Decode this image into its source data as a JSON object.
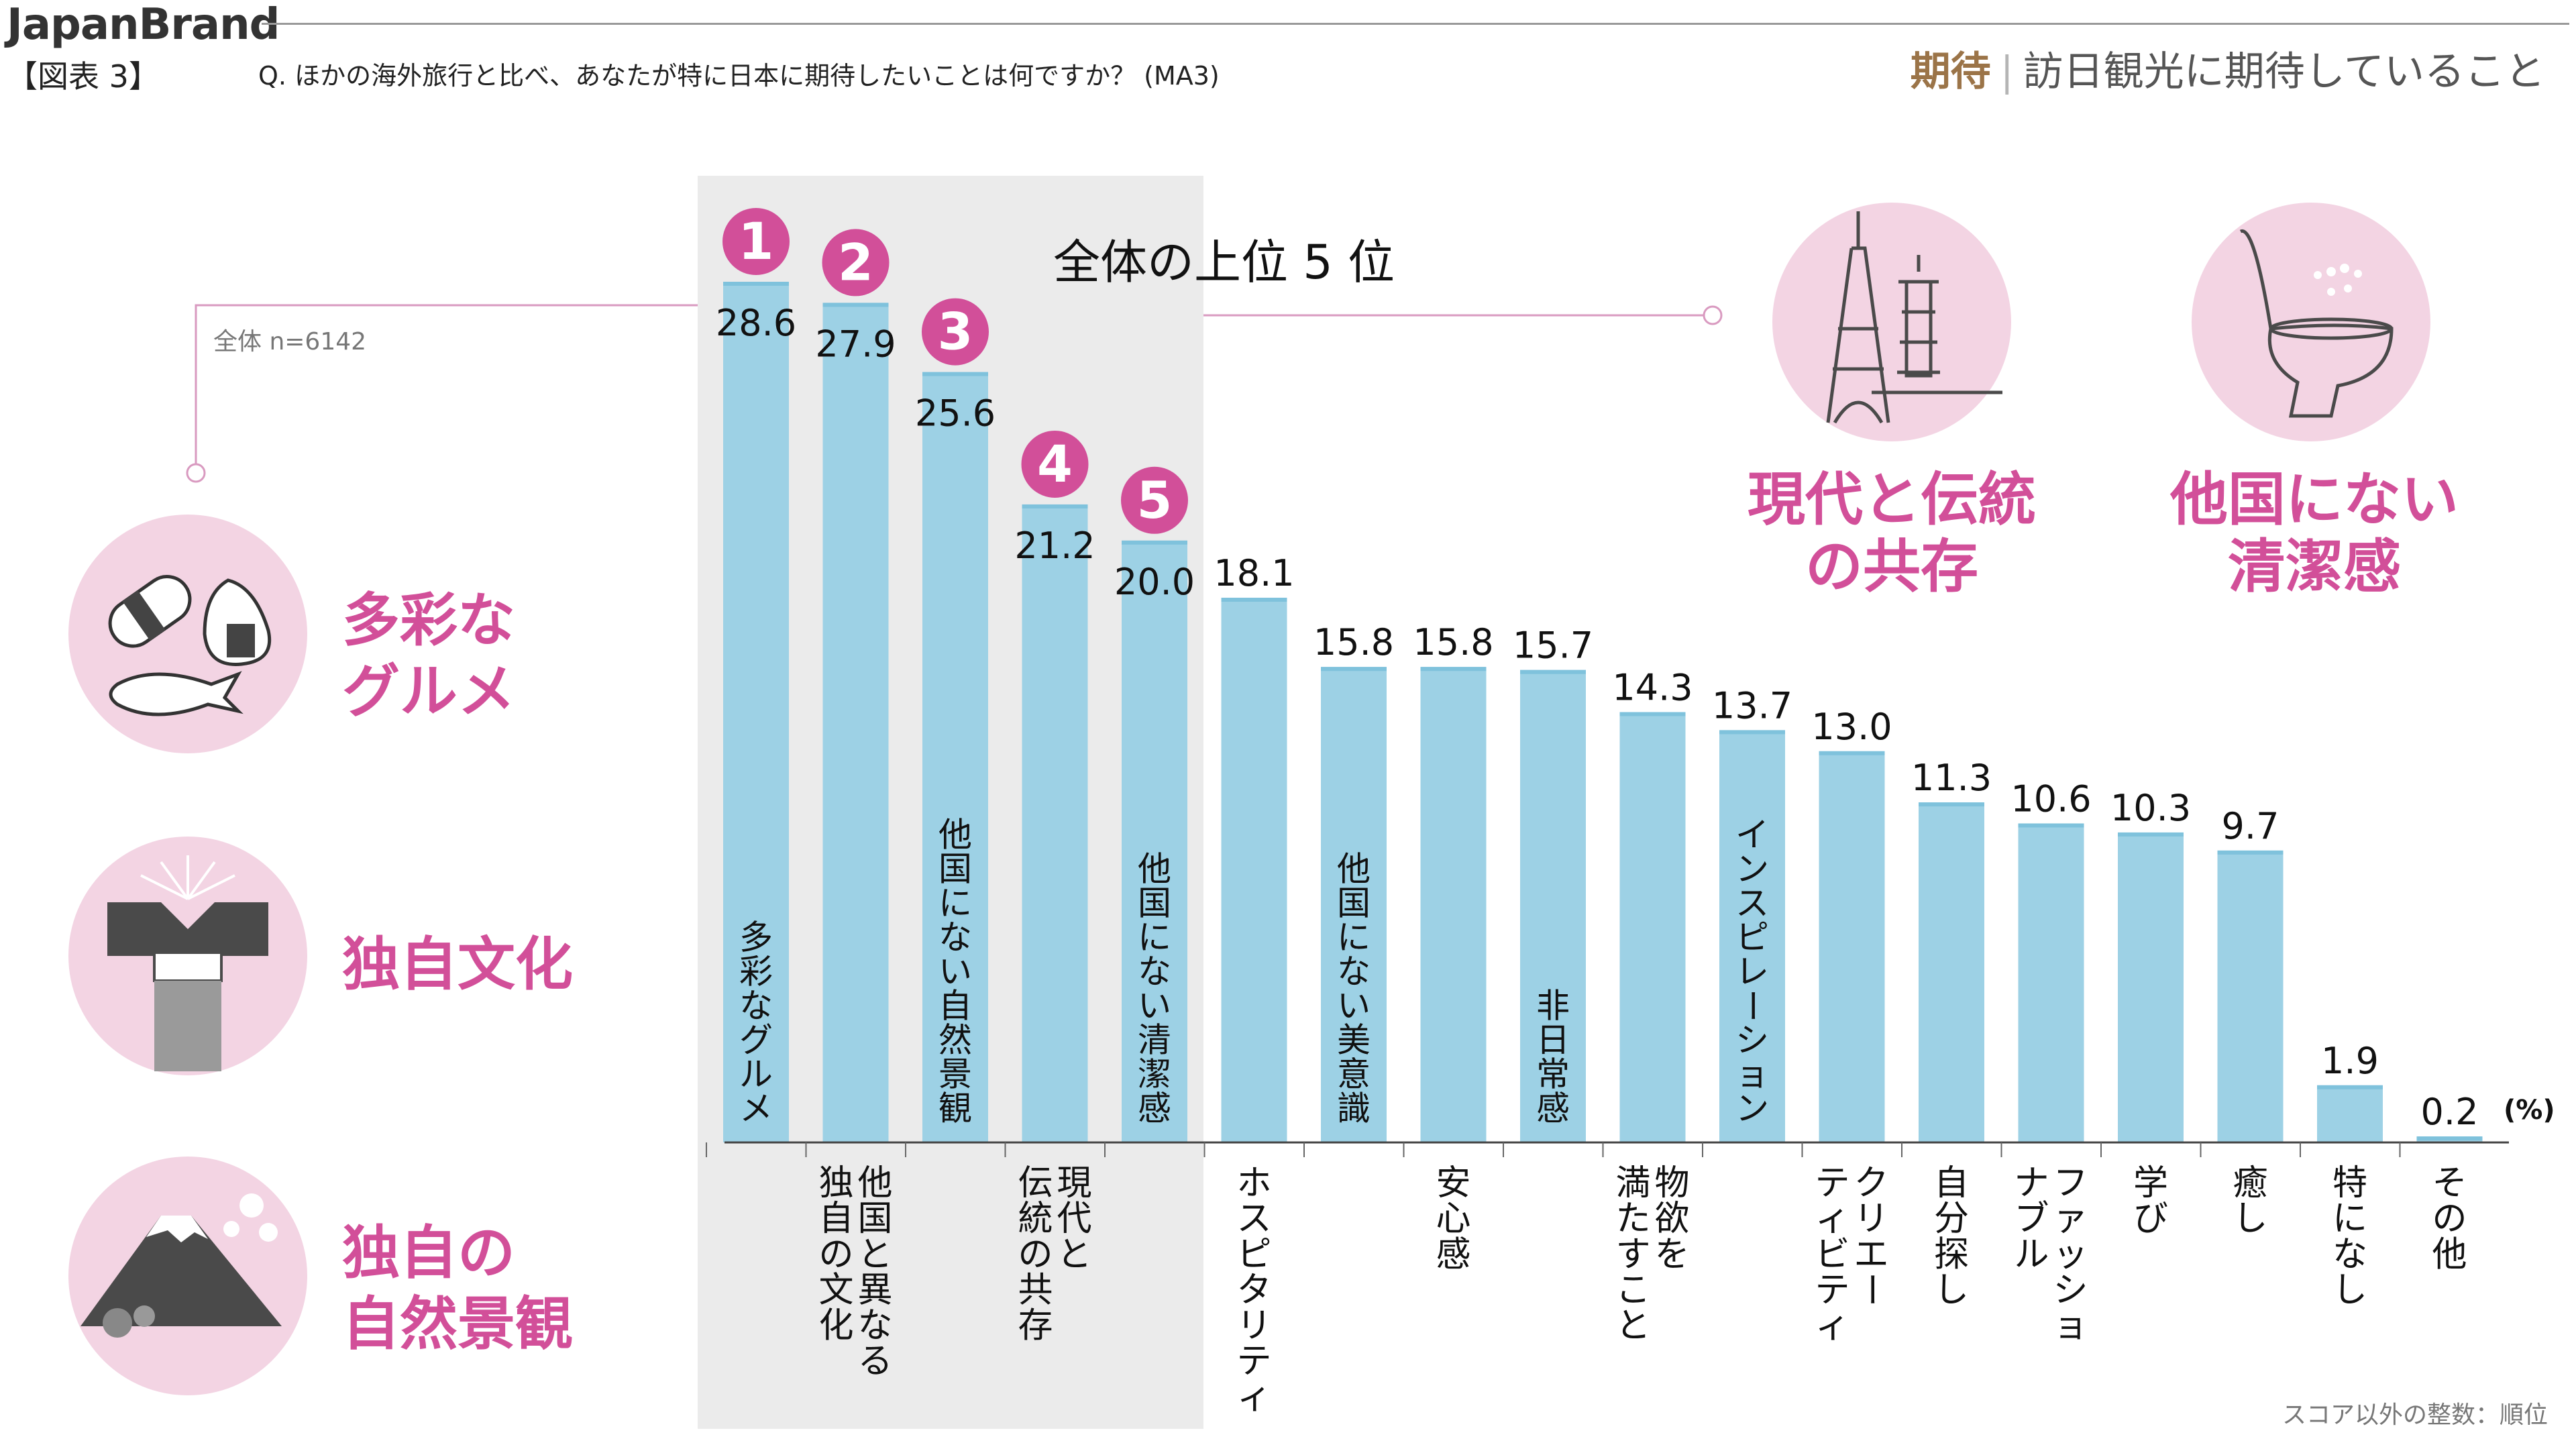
{
  "header": {
    "brand": "JapanBrand",
    "figure_label": "【図表 3】",
    "question": "Q. ほかの海外旅行と比べ、あなたが特に日本に期待したいことは何ですか？ (MA3)",
    "section_key": "期待",
    "section_title": "訪日観光に期待していること"
  },
  "sample_label": "全体 n=6142",
  "top5_title": "全体の上位 5 位",
  "unit_label": "(%)",
  "footnote": "スコア以外の整数：順位",
  "themes": {
    "gourmet": {
      "line1": "多彩な",
      "line2": "グルメ"
    },
    "culture": {
      "line1": "独自文化"
    },
    "landscape": {
      "line1": "独自の",
      "line2": "自然景観"
    },
    "coexist": {
      "line1": "現代と伝統",
      "line2": "の共存"
    },
    "clean": {
      "line1": "他国にない",
      "line2": "清潔感"
    }
  },
  "colors": {
    "bar": "#9dd1e5",
    "bar_top": "#7fc2dc",
    "accent_pink": "#d24f99",
    "icon_circle": "#f3d4e3",
    "highlight_bg": "#ebebeb"
  },
  "chart_data": {
    "type": "bar",
    "unit": "%",
    "ylim": [
      0,
      30
    ],
    "categories": [
      "多彩なグルメ",
      "他国と異なる独自の文化",
      "他国にない自然景観",
      "現代と伝統の共存",
      "他国にない清潔感",
      "ホスピタリティ",
      "他国にない美意識",
      "安心感",
      "非日常感",
      "物欲を満たすこと",
      "インスピレーション",
      "クリエーティビティ",
      "自分探し",
      "ファッショナブル",
      "学び",
      "癒し",
      "特になし",
      "その他"
    ],
    "values": [
      28.6,
      27.9,
      25.6,
      21.2,
      20.0,
      18.1,
      15.8,
      15.8,
      15.7,
      14.3,
      13.7,
      13.0,
      11.3,
      10.6,
      10.3,
      9.7,
      1.9,
      0.2
    ],
    "value_labels": [
      "28.6",
      "27.9",
      "25.6",
      "21.2",
      "20.0",
      "18.1",
      "15.8",
      "15.8",
      "15.7",
      "14.3",
      "13.7",
      "13.0",
      "11.3",
      "10.6",
      "10.3",
      "9.7",
      "1.9",
      "0.2"
    ],
    "ranks": [
      "1",
      "2",
      "3",
      "4",
      "5"
    ],
    "inside_labels": [
      {
        "index": 0,
        "text": "多彩なグルメ"
      },
      {
        "index": 2,
        "text": "他国にない自然景観"
      },
      {
        "index": 4,
        "text": "他国にない清潔感"
      },
      {
        "index": 6,
        "text": "他国にない美意識"
      },
      {
        "index": 8,
        "text": "非日常感"
      },
      {
        "index": 10,
        "text": "インスピレーション"
      }
    ],
    "below_labels": [
      {
        "index": 1,
        "lines": [
          "他国と異なる",
          "独自の文化"
        ]
      },
      {
        "index": 3,
        "lines": [
          "現代と",
          "伝統の共存"
        ]
      },
      {
        "index": 5,
        "lines": [
          "ホスピタリティ"
        ]
      },
      {
        "index": 7,
        "lines": [
          "安心感"
        ]
      },
      {
        "index": 9,
        "lines": [
          "物欲を",
          "満たすこと"
        ]
      },
      {
        "index": 11,
        "lines": [
          "クリエー",
          "ティビティ"
        ]
      },
      {
        "index": 12,
        "lines": [
          "自分探し"
        ]
      },
      {
        "index": 13,
        "lines": [
          "ファッショ",
          "ナブル"
        ]
      },
      {
        "index": 14,
        "lines": [
          "学び"
        ]
      },
      {
        "index": 15,
        "lines": [
          "癒し"
        ]
      },
      {
        "index": 16,
        "lines": [
          "特になし"
        ]
      },
      {
        "index": 17,
        "lines": [
          "その他"
        ]
      }
    ],
    "grid": false,
    "legend": "none"
  }
}
